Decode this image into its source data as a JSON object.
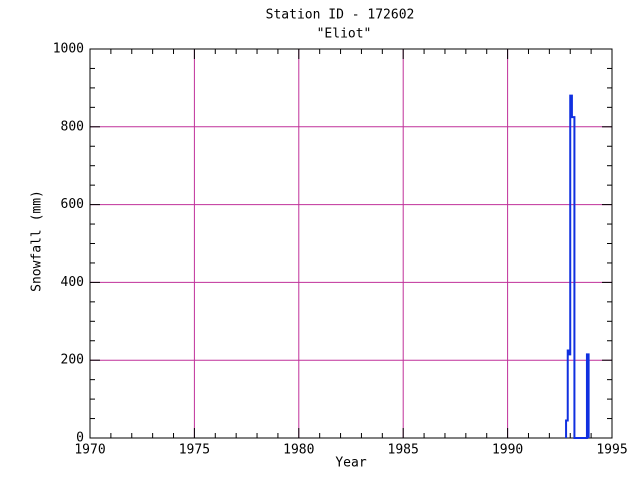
{
  "chart_data": {
    "type": "line",
    "title": "Station ID - 172602",
    "subtitle": "\"Eliot\"",
    "x_label": "Year",
    "y_label": "Snowfall (mm)",
    "xlim": [
      1970,
      1995
    ],
    "xticks": [
      1970,
      1975,
      1980,
      1985,
      1990,
      1995
    ],
    "ylim": [
      0,
      1000
    ],
    "yticks": [
      0,
      200,
      400,
      600,
      800,
      1000
    ],
    "grid": true,
    "grid_color": "#c0309a",
    "step": true,
    "series": [
      {
        "name": "Snowfall",
        "color": "#1030e0",
        "x": [
          1992.8,
          1992.8,
          1992.88,
          1992.88,
          1992.94,
          1992.94,
          1993.0,
          1993.0,
          1993.08,
          1993.08,
          1993.2,
          1993.2,
          1993.8,
          1993.8,
          1993.88,
          1993.88
        ],
        "values": [
          0,
          45,
          45,
          225,
          225,
          215,
          215,
          880,
          880,
          825,
          825,
          0,
          0,
          215,
          215,
          0
        ]
      }
    ]
  }
}
